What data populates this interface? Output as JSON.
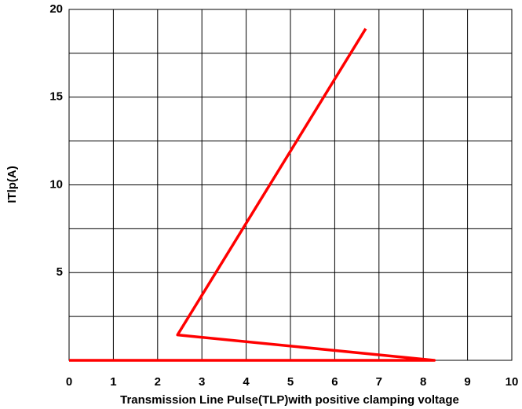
{
  "chart_data": {
    "type": "line",
    "xlabel": "Transmission Line Pulse(TLP)with positive clamping voltage",
    "ylabel": "ITlp(A)",
    "xlim": [
      0,
      10
    ],
    "xticks": [
      0,
      1,
      2,
      3,
      4,
      5,
      6,
      7,
      8,
      9,
      10
    ],
    "ylim": [
      0,
      20
    ],
    "yticks": [
      5,
      10,
      15,
      20
    ],
    "ygrid": [
      2.5,
      5,
      7.5,
      10,
      12.5,
      15,
      17.5
    ],
    "grid": true,
    "series": [
      {
        "color": "#ff0000",
        "x": [
          0,
          8.25,
          2.45,
          6.7
        ],
        "values": [
          0,
          0,
          1.45,
          18.9
        ]
      }
    ]
  }
}
